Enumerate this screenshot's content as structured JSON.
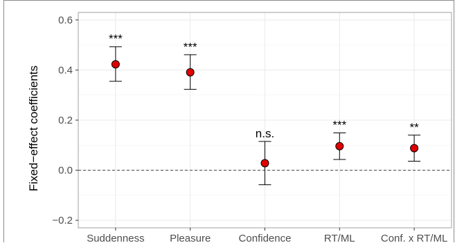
{
  "chart_data": {
    "type": "scatter",
    "ylabel": "Fixed−effect coefficients",
    "xlabel": "",
    "ylim": [
      -0.23,
      0.63
    ],
    "yticks": [
      -0.2,
      0.0,
      0.2,
      0.4,
      0.6
    ],
    "ytick_labels": [
      "−0.2",
      "0.0",
      "0.2",
      "0.4",
      "0.6"
    ],
    "categories": [
      "Suddenness",
      "Pleasure",
      "Confidence",
      "RT/ML",
      "Conf. x RT/ML"
    ],
    "values": [
      0.423,
      0.391,
      0.028,
      0.096,
      0.088
    ],
    "lower": [
      0.355,
      0.323,
      -0.058,
      0.043,
      0.036
    ],
    "upper": [
      0.493,
      0.461,
      0.115,
      0.149,
      0.14
    ],
    "annotations": [
      "***",
      "***",
      "n.s.",
      "***",
      "**"
    ],
    "reference_line": 0.0,
    "grid": true,
    "colors": {
      "point_fill": "#e00000",
      "point_edge": "#000000",
      "grid": "#ebebeb",
      "axis_text": "#4d4d4d"
    }
  }
}
